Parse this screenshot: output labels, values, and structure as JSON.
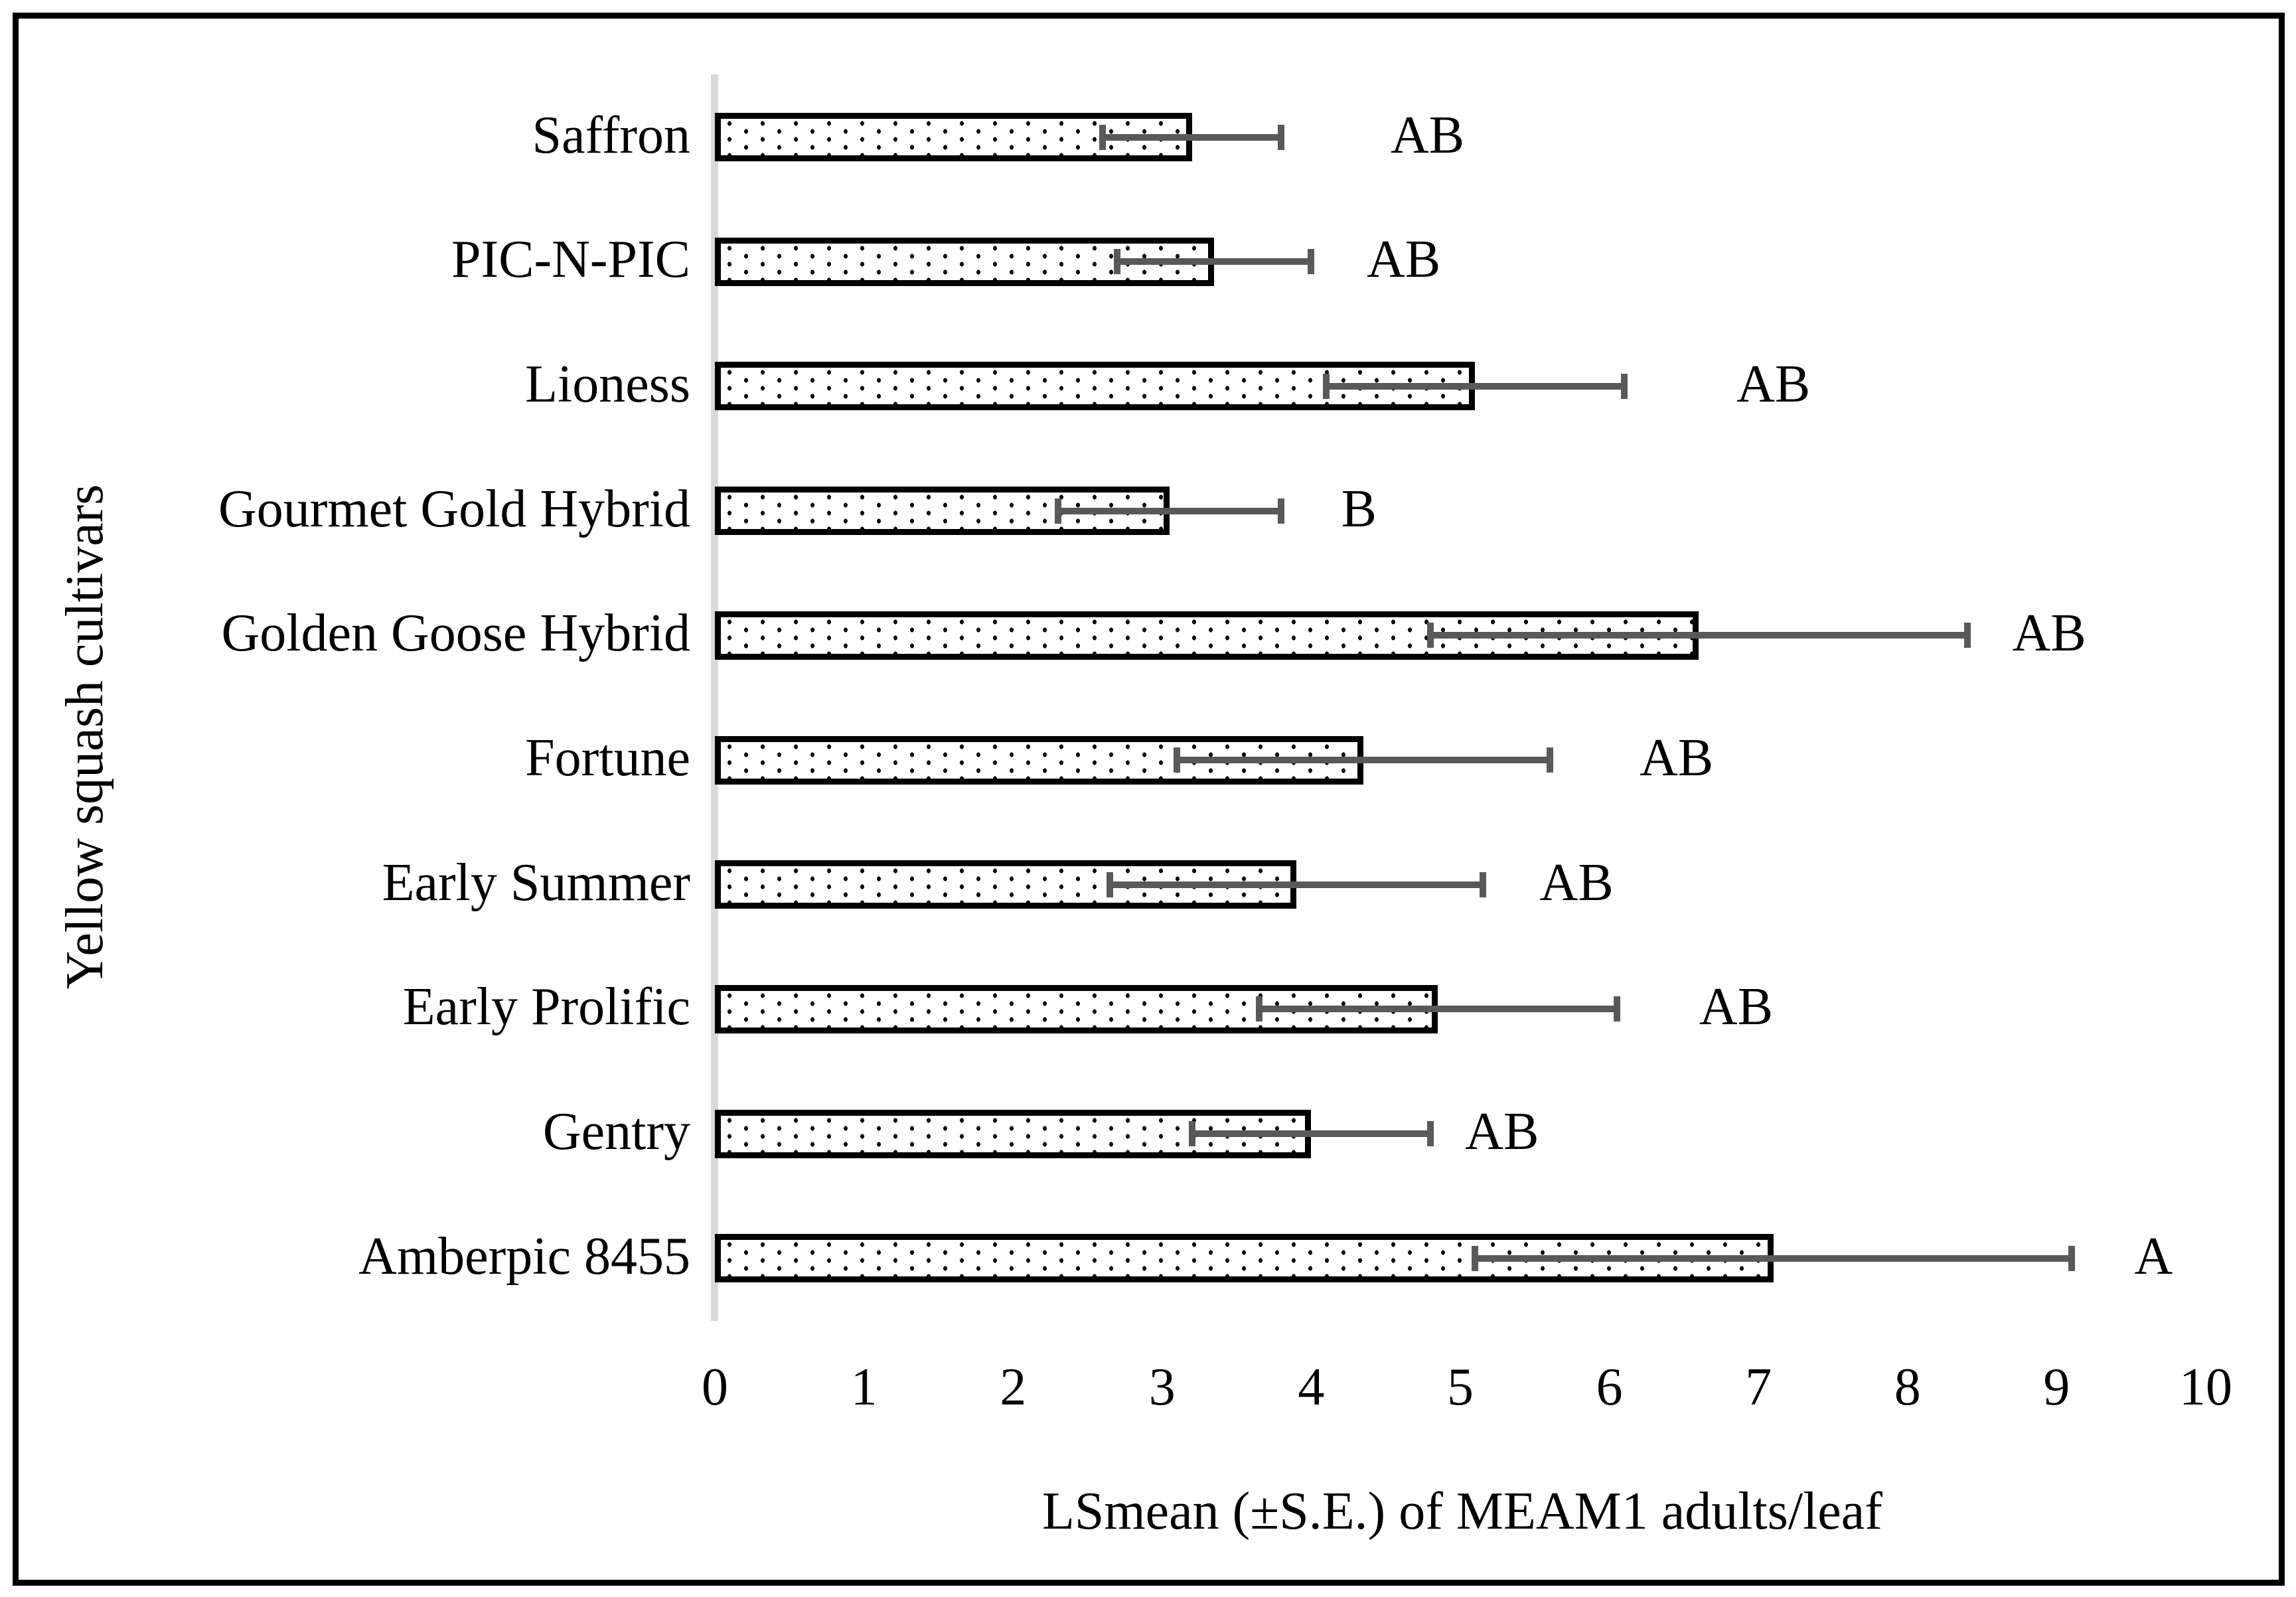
{
  "figure": {
    "x_axis_title": "LSmean (±S.E.) of MEAM1 adults/leaf",
    "y_axis_title": "Yellow squash cultivars"
  },
  "chart_data": {
    "type": "bar",
    "orientation": "horizontal",
    "title": "",
    "xlabel": "LSmean (±S.E.) of MEAM1 adults/leaf",
    "ylabel": "Yellow squash cultivars",
    "xlim": [
      0,
      10
    ],
    "x_ticks": [
      0,
      1,
      2,
      3,
      4,
      5,
      6,
      7,
      8,
      9,
      10
    ],
    "grid": false,
    "legend": "none",
    "bar_style": "white fill with black dotted pattern, black outline",
    "categories": [
      "Saffron",
      "PIC-N-PIC",
      "Lioness",
      "Gourmet Gold Hybrid",
      "Golden Goose Hybrid",
      "Fortune",
      "Early Summer",
      "Early Prolific",
      "Gentry",
      "Amberpic 8455"
    ],
    "series": [
      {
        "name": "LSmean of MEAM1 adults/leaf",
        "values": [
          3.2,
          3.35,
          5.1,
          3.05,
          6.6,
          4.35,
          3.9,
          4.85,
          4.0,
          7.1
        ],
        "se": [
          0.6,
          0.65,
          1.0,
          0.75,
          1.8,
          1.25,
          1.25,
          1.2,
          0.8,
          2.0
        ]
      }
    ],
    "significance_letters": [
      "AB",
      "AB",
      "AB",
      "B",
      "AB",
      "AB",
      "AB",
      "AB",
      "AB",
      "A"
    ],
    "letter_x_positions": [
      4.78,
      4.62,
      7.1,
      4.32,
      8.95,
      6.45,
      5.78,
      6.85,
      5.28,
      9.65
    ]
  },
  "colors": {
    "error_bar": "#595959",
    "axis_line": "#d9d9d9",
    "bar_border": "#000000",
    "bar_dot": "#000000",
    "bar_fill": "#ffffff",
    "text": "#000000",
    "frame_border": "#000000",
    "background": "#ffffff"
  }
}
